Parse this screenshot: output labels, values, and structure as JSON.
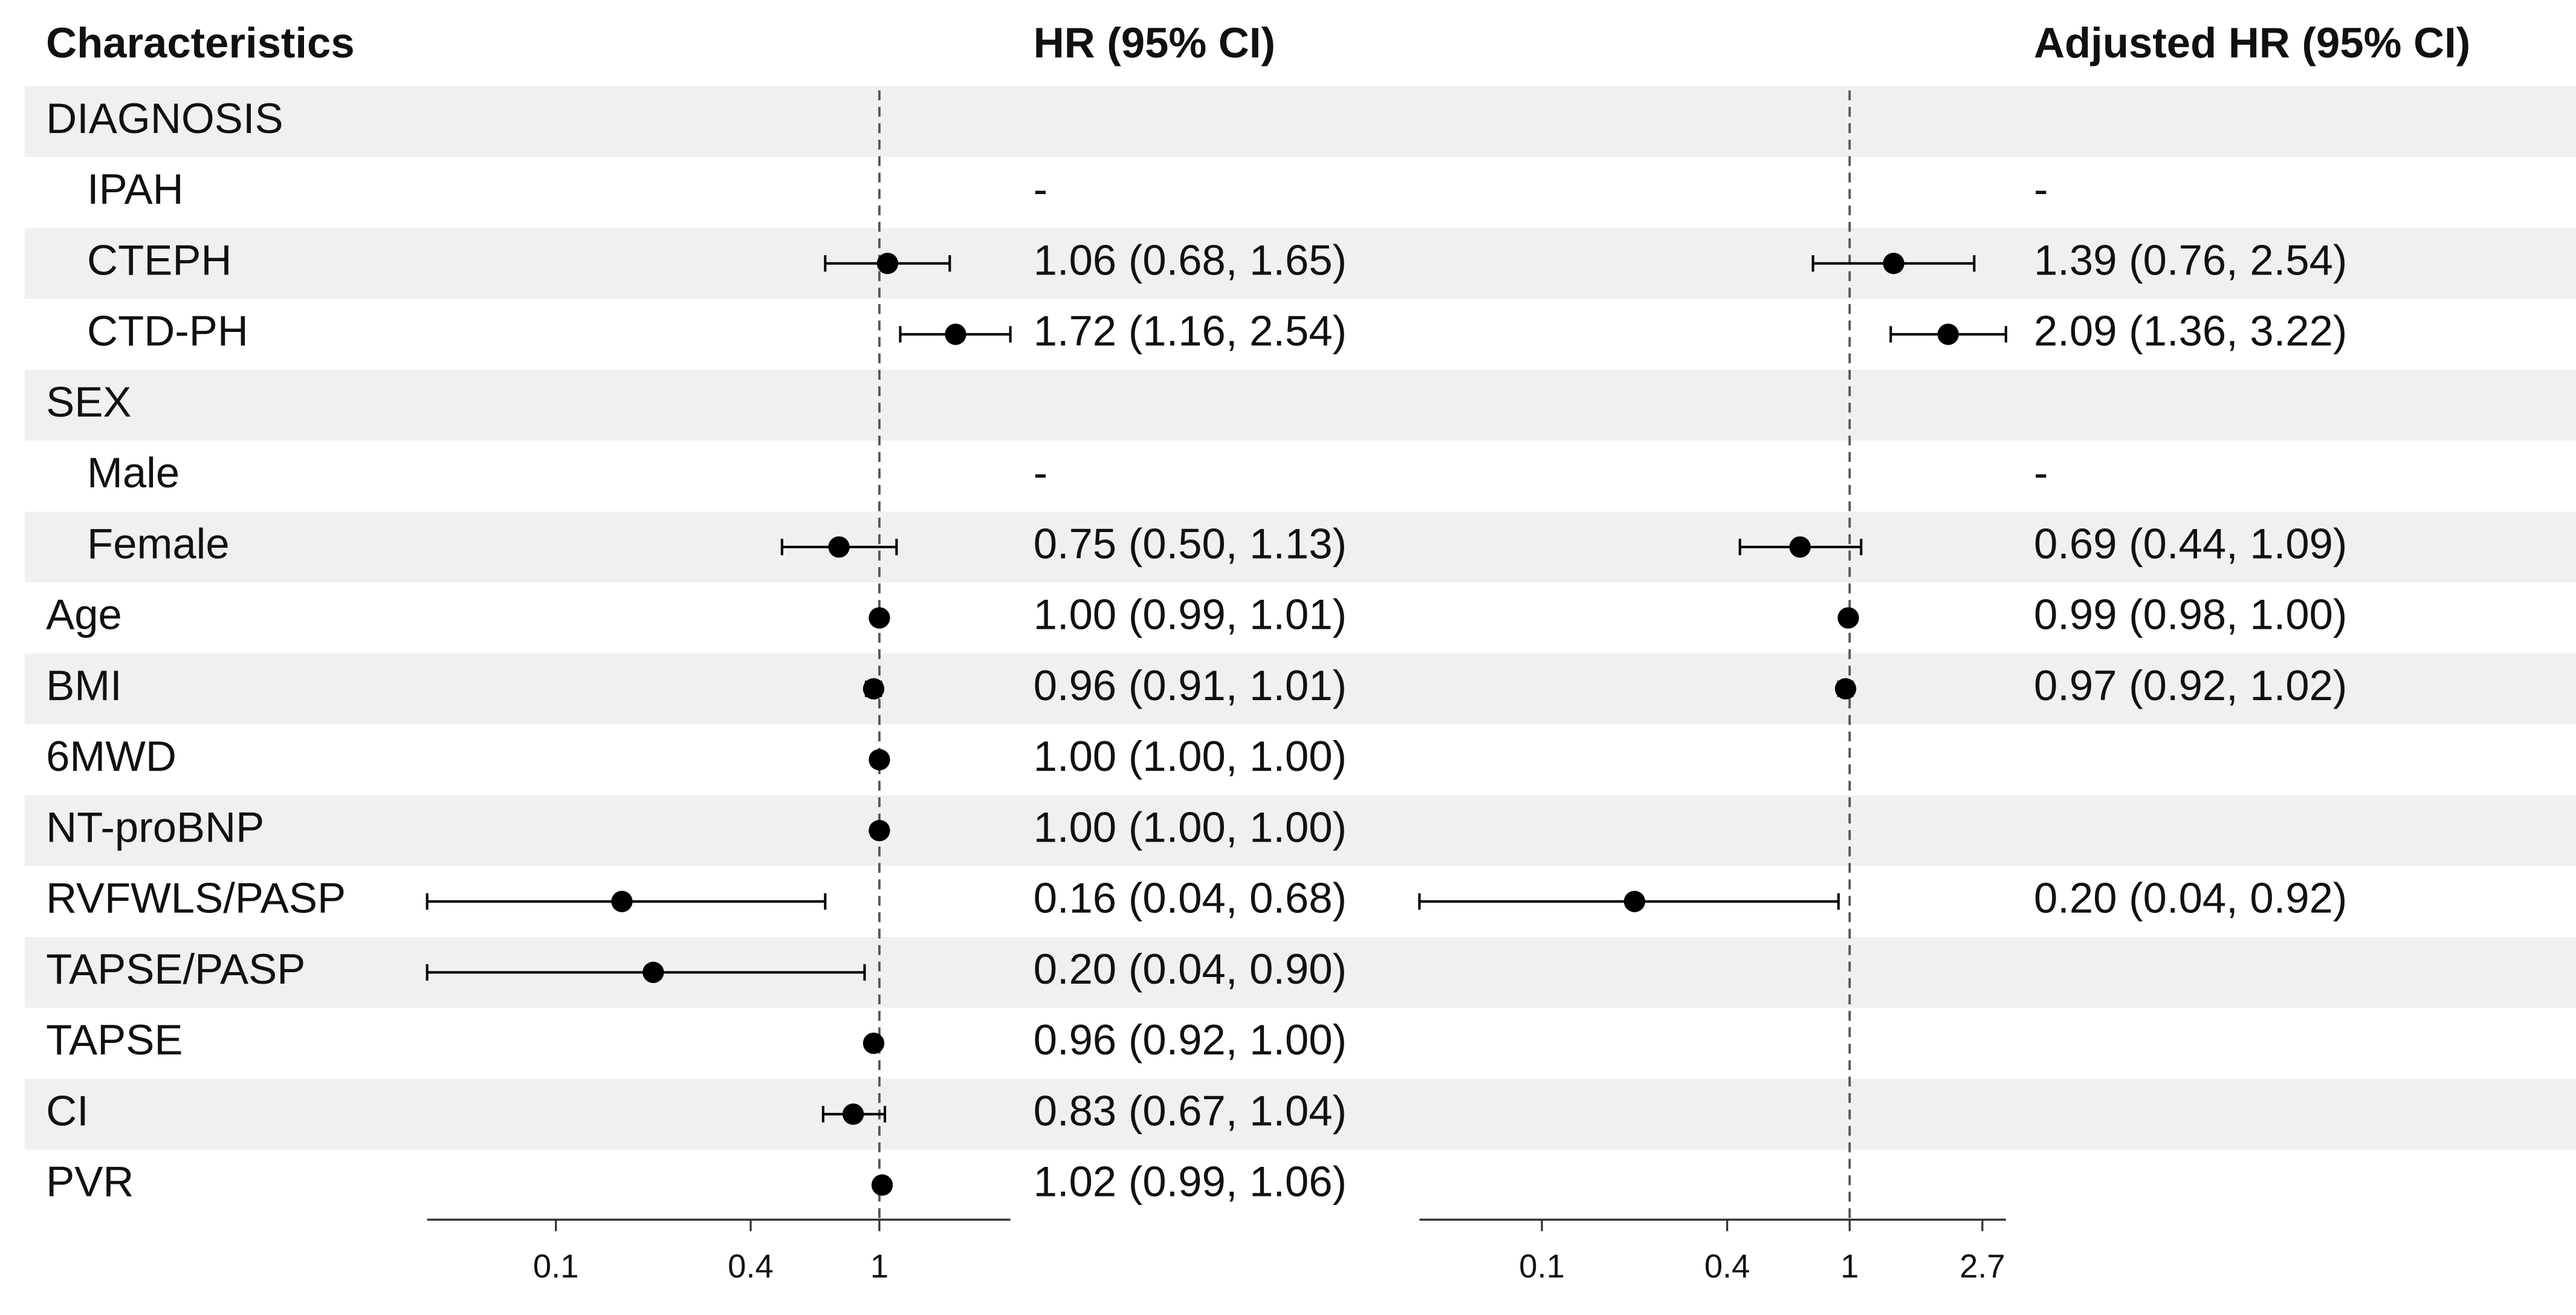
{
  "chart_data": {
    "type": "forest",
    "header": "Characteristics",
    "categories": [
      "DIAGNOSIS",
      "IPAH",
      "CTEPH",
      "CTD-PH",
      "SEX",
      "Male",
      "Female",
      "Age",
      "BMI",
      "6MWD",
      "NT-proBNP",
      "RVFWLS/PASP",
      "TAPSE/PASP",
      "TAPSE",
      "CI",
      "PVR"
    ],
    "indented": [
      false,
      true,
      true,
      true,
      false,
      true,
      true,
      false,
      false,
      false,
      false,
      false,
      false,
      false,
      false,
      false
    ],
    "stripe_color": "#eef1f0",
    "point_color": "#000000",
    "log_scale": true,
    "panels": [
      {
        "title": "HR (95% CI)",
        "values": [
          null,
          null,
          1.06,
          1.72,
          null,
          null,
          0.75,
          1.0,
          0.96,
          1.0,
          1.0,
          0.16,
          0.2,
          0.96,
          0.83,
          1.02
        ],
        "lower": [
          null,
          null,
          0.68,
          1.16,
          null,
          null,
          0.5,
          0.99,
          0.91,
          1.0,
          1.0,
          0.04,
          0.04,
          0.92,
          0.67,
          0.99
        ],
        "upper": [
          null,
          null,
          1.65,
          2.54,
          null,
          null,
          1.13,
          1.01,
          1.01,
          1.0,
          1.0,
          0.68,
          0.9,
          1.0,
          1.04,
          1.06
        ],
        "value_labels": [
          null,
          "-",
          "1.06 (0.68, 1.65)",
          "1.72 (1.16, 2.54)",
          null,
          "-",
          "0.75 (0.50, 1.13)",
          "1.00 (0.99, 1.01)",
          "0.96 (0.91, 1.01)",
          "1.00 (1.00, 1.00)",
          "1.00 (1.00, 1.00)",
          "0.16 (0.04, 0.68)",
          "0.20 (0.04, 0.90)",
          "0.96 (0.92, 1.00)",
          "0.83 (0.67, 1.04)",
          "1.02 (0.99, 1.06)"
        ],
        "xlim": [
          0.04,
          2.54
        ],
        "xticks": [
          0.1,
          0.4,
          1
        ],
        "ref_line": 1
      },
      {
        "title": "Adjusted HR (95% CI)",
        "values": [
          null,
          null,
          1.39,
          2.09,
          null,
          null,
          0.69,
          0.99,
          0.97,
          null,
          null,
          0.2,
          null,
          null,
          null,
          null
        ],
        "lower": [
          null,
          null,
          0.76,
          1.36,
          null,
          null,
          0.44,
          0.98,
          0.92,
          null,
          null,
          0.04,
          null,
          null,
          null,
          null
        ],
        "upper": [
          null,
          null,
          2.54,
          3.22,
          null,
          null,
          1.09,
          1.0,
          1.02,
          null,
          null,
          0.92,
          null,
          null,
          null,
          null
        ],
        "value_labels": [
          null,
          "-",
          "1.39 (0.76, 2.54)",
          "2.09 (1.36, 3.22)",
          null,
          "-",
          "0.69 (0.44, 1.09)",
          "0.99 (0.98, 1.00)",
          "0.97 (0.92, 1.02)",
          null,
          null,
          "0.20 (0.04, 0.92)",
          null,
          null,
          null,
          null
        ],
        "xlim": [
          0.04,
          3.22
        ],
        "xticks": [
          0.1,
          0.4,
          1,
          2.7
        ],
        "ref_line": 1
      }
    ]
  }
}
